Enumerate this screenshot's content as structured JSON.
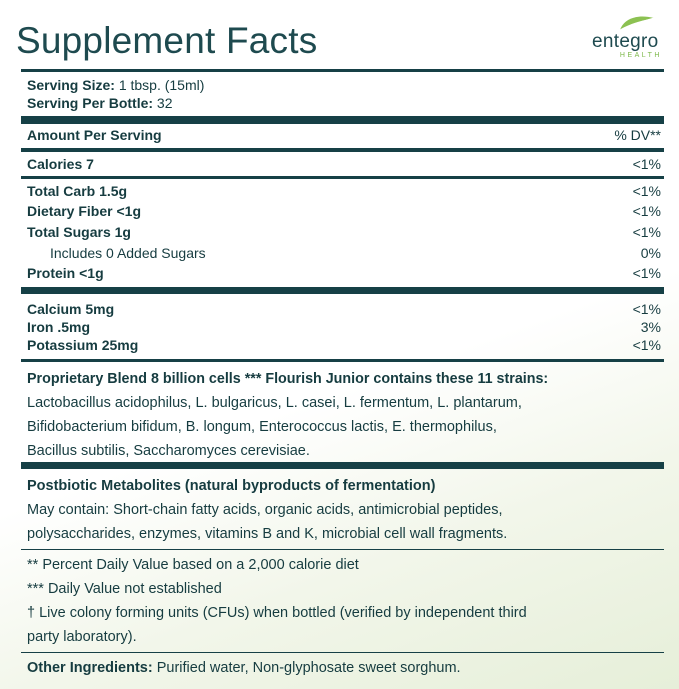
{
  "title": "Supplement Facts",
  "brand": {
    "name": "entegro",
    "sub": "HEALTH"
  },
  "serving": {
    "size_label": "Serving Size:",
    "size_value": "1 tbsp. (15ml)",
    "per_label": "Serving Per Bottle:",
    "per_value": "32"
  },
  "header": {
    "amount": "Amount Per Serving",
    "dv": "% DV**"
  },
  "nutrients": {
    "calories": {
      "label": "Calories 7",
      "dv": "<1%"
    },
    "carb": {
      "label": "Total Carb 1.5g",
      "dv": "<1%"
    },
    "fiber": {
      "label": "Dietary Fiber <1g",
      "dv": "<1%"
    },
    "sugars": {
      "label": "Total Sugars 1g",
      "dv": "<1%"
    },
    "added": {
      "label": "Includes 0 Added Sugars",
      "dv": "0%"
    },
    "protein": {
      "label": "Protein <1g",
      "dv": "<1%"
    },
    "calcium": {
      "label": "Calcium 5mg",
      "dv": "<1%"
    },
    "iron": {
      "label": "Iron .5mg",
      "dv": "3%"
    },
    "potassium": {
      "label": "Potassium 25mg",
      "dv": "<1%"
    }
  },
  "blend": {
    "heading": "Proprietary Blend 8 billion cells *** Flourish Junior contains these 11 strains:",
    "lines": [
      "Lactobacillus acidophilus, L. bulgaricus, L. casei, L. fermentum, L. plantarum,",
      "Bifidobacterium bifidum, B. longum, Enterococcus lactis, E. thermophilus,",
      "Bacillus subtilis, Saccharomyces cerevisiae."
    ]
  },
  "postbiotic": {
    "heading": "Postbiotic Metabolites (natural byproducts of fermentation)",
    "lines": [
      "May contain: Short-chain fatty acids, organic acids, antimicrobial peptides,",
      "polysaccharides, enzymes, vitamins B and K, microbial cell wall fragments."
    ]
  },
  "footnotes": [
    "** Percent Daily Value based on a 2,000 calorie diet",
    "*** Daily Value not established",
    "† Live colony forming units (CFUs) when bottled (verified by independent third",
    "party laboratory)."
  ],
  "other": {
    "label": "Other Ingredients:",
    "value": "Purified water, Non-glyphosate sweet sorghum."
  },
  "colors": {
    "ink": "#163c40",
    "accent": "#7db84a"
  }
}
